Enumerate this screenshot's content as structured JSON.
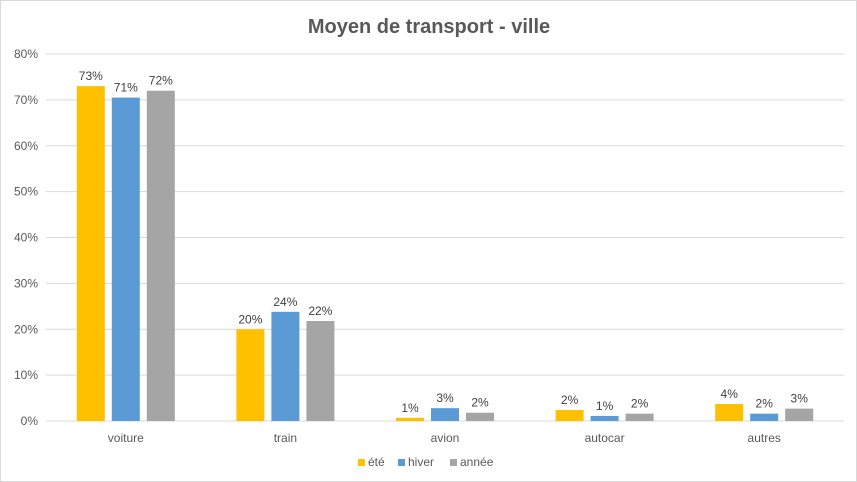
{
  "chart_data": {
    "type": "bar",
    "title": "Moyen de transport - ville",
    "categories": [
      "voiture",
      "train",
      "avion",
      "autocar",
      "autres"
    ],
    "series": [
      {
        "name": "été",
        "color": "#ffc000",
        "values": [
          0.73,
          0.2,
          0.007,
          0.024,
          0.037
        ],
        "labels": [
          "73%",
          "20%",
          "1%",
          "2%",
          "4%"
        ]
      },
      {
        "name": "hiver",
        "color": "#5b9bd5",
        "values": [
          0.705,
          0.238,
          0.028,
          0.011,
          0.016
        ],
        "labels": [
          "71%",
          "24%",
          "3%",
          "1%",
          "2%"
        ]
      },
      {
        "name": "année",
        "color": "#a5a5a5",
        "values": [
          0.72,
          0.218,
          0.018,
          0.016,
          0.027
        ],
        "labels": [
          "72%",
          "22%",
          "2%",
          "2%",
          "3%"
        ]
      }
    ],
    "yticks": [
      "0%",
      "10%",
      "20%",
      "30%",
      "40%",
      "50%",
      "60%",
      "70%",
      "80%"
    ],
    "ylim": [
      0,
      0.8
    ],
    "grid": true,
    "legend_position": "bottom"
  }
}
